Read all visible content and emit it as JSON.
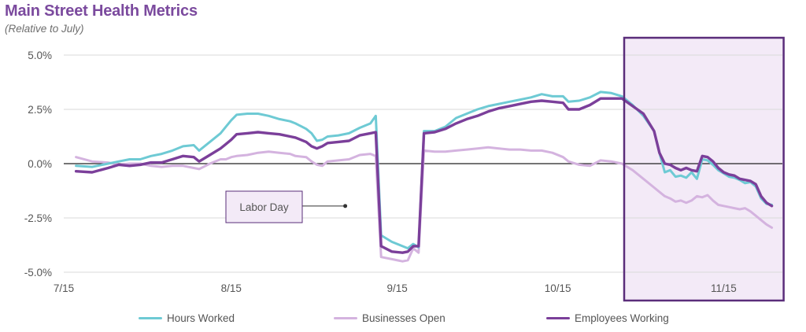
{
  "header": {
    "title": "Main Street Health Metrics",
    "subtitle": "(Relative to July)"
  },
  "colors": {
    "hours": "#6ecad4",
    "businesses": "#d4b3df",
    "employees": "#7b3f9a",
    "title": "#7b4a9e",
    "grid": "#d9d9d9",
    "zero": "#222222",
    "highlight_border": "#5a2d7a",
    "highlight_fill": "#f3eaf7"
  },
  "chart_data": {
    "type": "line",
    "title": "Main Street Health Metrics",
    "subtitle": "(Relative to July)",
    "xlabel": "",
    "ylabel": "",
    "ylim": [
      -5.0,
      5.0
    ],
    "y_ticks": [
      "5.0%",
      "2.5%",
      "0.0%",
      "-2.5%",
      "-5.0%"
    ],
    "y_tick_values": [
      5.0,
      2.5,
      0.0,
      -2.5,
      -5.0
    ],
    "x_ticks": [
      "7/15",
      "8/15",
      "9/15",
      "10/15",
      "11/15"
    ],
    "x_tick_days": [
      0,
      31,
      62,
      92,
      123
    ],
    "xlim_days": [
      0,
      132
    ],
    "grid": true,
    "legend_position": "bottom",
    "highlight_region_days": [
      105,
      132
    ],
    "annotation": {
      "label": "Labor Day",
      "day": 52
    },
    "series": [
      {
        "name": "Hours Worked",
        "color_key": "hours",
        "points": [
          [
            2,
            -0.1
          ],
          [
            5,
            -0.15
          ],
          [
            8,
            0.0
          ],
          [
            10,
            0.1
          ],
          [
            12,
            0.2
          ],
          [
            14,
            0.2
          ],
          [
            16,
            0.35
          ],
          [
            18,
            0.45
          ],
          [
            20,
            0.6
          ],
          [
            22,
            0.8
          ],
          [
            24,
            0.85
          ],
          [
            25,
            0.6
          ],
          [
            27,
            1.0
          ],
          [
            29,
            1.4
          ],
          [
            30,
            1.7
          ],
          [
            31,
            2.0
          ],
          [
            32,
            2.25
          ],
          [
            34,
            2.3
          ],
          [
            36,
            2.3
          ],
          [
            38,
            2.2
          ],
          [
            40,
            2.05
          ],
          [
            42,
            1.95
          ],
          [
            43,
            1.85
          ],
          [
            45,
            1.6
          ],
          [
            46,
            1.4
          ],
          [
            47,
            1.05
          ],
          [
            48,
            1.1
          ],
          [
            49,
            1.25
          ],
          [
            51,
            1.3
          ],
          [
            53,
            1.4
          ],
          [
            55,
            1.65
          ],
          [
            57,
            1.85
          ],
          [
            58,
            2.2
          ],
          [
            59,
            -3.3
          ],
          [
            61,
            -3.6
          ],
          [
            63,
            -3.8
          ],
          [
            64,
            -3.9
          ],
          [
            65,
            -3.7
          ],
          [
            66,
            -3.85
          ],
          [
            67,
            1.5
          ],
          [
            69,
            1.5
          ],
          [
            71,
            1.7
          ],
          [
            73,
            2.1
          ],
          [
            75,
            2.3
          ],
          [
            77,
            2.5
          ],
          [
            79,
            2.65
          ],
          [
            81,
            2.75
          ],
          [
            83,
            2.85
          ],
          [
            85,
            2.95
          ],
          [
            87,
            3.05
          ],
          [
            89,
            3.2
          ],
          [
            91,
            3.1
          ],
          [
            93,
            3.1
          ],
          [
            94,
            2.85
          ],
          [
            96,
            2.9
          ],
          [
            98,
            3.05
          ],
          [
            100,
            3.3
          ],
          [
            102,
            3.25
          ],
          [
            104,
            3.1
          ],
          [
            106,
            2.7
          ],
          [
            108,
            2.2
          ],
          [
            110,
            1.5
          ],
          [
            111,
            0.5
          ],
          [
            112,
            -0.4
          ],
          [
            113,
            -0.3
          ],
          [
            114,
            -0.6
          ],
          [
            115,
            -0.55
          ],
          [
            116,
            -0.65
          ],
          [
            117,
            -0.4
          ],
          [
            118,
            -0.7
          ],
          [
            119,
            0.2
          ],
          [
            120,
            0.15
          ],
          [
            121,
            -0.05
          ],
          [
            122,
            -0.3
          ],
          [
            123,
            -0.45
          ],
          [
            124,
            -0.6
          ],
          [
            125,
            -0.65
          ],
          [
            126,
            -0.75
          ],
          [
            127,
            -0.9
          ],
          [
            128,
            -0.85
          ],
          [
            129,
            -1.05
          ],
          [
            130,
            -1.6
          ],
          [
            131,
            -1.85
          ],
          [
            132,
            -1.9
          ]
        ]
      },
      {
        "name": "Businesses Open",
        "color_key": "businesses",
        "points": [
          [
            2,
            0.3
          ],
          [
            5,
            0.1
          ],
          [
            8,
            0.05
          ],
          [
            10,
            -0.05
          ],
          [
            12,
            0.0
          ],
          [
            14,
            0.0
          ],
          [
            16,
            -0.1
          ],
          [
            18,
            -0.15
          ],
          [
            20,
            -0.1
          ],
          [
            22,
            -0.1
          ],
          [
            24,
            -0.2
          ],
          [
            25,
            -0.25
          ],
          [
            27,
            0.0
          ],
          [
            29,
            0.2
          ],
          [
            30,
            0.2
          ],
          [
            31,
            0.3
          ],
          [
            32,
            0.35
          ],
          [
            34,
            0.4
          ],
          [
            36,
            0.5
          ],
          [
            38,
            0.55
          ],
          [
            40,
            0.5
          ],
          [
            42,
            0.45
          ],
          [
            43,
            0.35
          ],
          [
            45,
            0.3
          ],
          [
            46,
            0.1
          ],
          [
            47,
            -0.05
          ],
          [
            48,
            -0.1
          ],
          [
            49,
            0.1
          ],
          [
            51,
            0.15
          ],
          [
            53,
            0.2
          ],
          [
            55,
            0.4
          ],
          [
            57,
            0.45
          ],
          [
            58,
            0.35
          ],
          [
            59,
            -4.3
          ],
          [
            61,
            -4.4
          ],
          [
            63,
            -4.5
          ],
          [
            64,
            -4.45
          ],
          [
            65,
            -3.9
          ],
          [
            66,
            -4.1
          ],
          [
            67,
            0.6
          ],
          [
            69,
            0.55
          ],
          [
            71,
            0.55
          ],
          [
            73,
            0.6
          ],
          [
            75,
            0.65
          ],
          [
            77,
            0.7
          ],
          [
            79,
            0.75
          ],
          [
            81,
            0.7
          ],
          [
            83,
            0.65
          ],
          [
            85,
            0.65
          ],
          [
            87,
            0.6
          ],
          [
            89,
            0.6
          ],
          [
            91,
            0.5
          ],
          [
            93,
            0.3
          ],
          [
            94,
            0.1
          ],
          [
            96,
            -0.05
          ],
          [
            98,
            -0.1
          ],
          [
            100,
            0.15
          ],
          [
            102,
            0.1
          ],
          [
            104,
            0.0
          ],
          [
            106,
            -0.3
          ],
          [
            108,
            -0.7
          ],
          [
            110,
            -1.1
          ],
          [
            111,
            -1.3
          ],
          [
            112,
            -1.5
          ],
          [
            113,
            -1.6
          ],
          [
            114,
            -1.75
          ],
          [
            115,
            -1.7
          ],
          [
            116,
            -1.8
          ],
          [
            117,
            -1.7
          ],
          [
            118,
            -1.5
          ],
          [
            119,
            -1.55
          ],
          [
            120,
            -1.45
          ],
          [
            121,
            -1.7
          ],
          [
            122,
            -1.9
          ],
          [
            123,
            -1.95
          ],
          [
            124,
            -2.0
          ],
          [
            125,
            -2.05
          ],
          [
            126,
            -2.1
          ],
          [
            127,
            -2.05
          ],
          [
            128,
            -2.2
          ],
          [
            129,
            -2.4
          ],
          [
            130,
            -2.6
          ],
          [
            131,
            -2.8
          ],
          [
            132,
            -2.95
          ]
        ]
      },
      {
        "name": "Employees Working",
        "color_key": "employees",
        "points": [
          [
            2,
            -0.35
          ],
          [
            5,
            -0.4
          ],
          [
            8,
            -0.2
          ],
          [
            10,
            -0.05
          ],
          [
            12,
            -0.1
          ],
          [
            14,
            -0.05
          ],
          [
            16,
            0.05
          ],
          [
            18,
            0.05
          ],
          [
            20,
            0.2
          ],
          [
            22,
            0.35
          ],
          [
            24,
            0.3
          ],
          [
            25,
            0.1
          ],
          [
            27,
            0.4
          ],
          [
            29,
            0.7
          ],
          [
            30,
            0.9
          ],
          [
            31,
            1.1
          ],
          [
            32,
            1.35
          ],
          [
            34,
            1.4
          ],
          [
            36,
            1.45
          ],
          [
            38,
            1.4
          ],
          [
            40,
            1.35
          ],
          [
            42,
            1.25
          ],
          [
            43,
            1.2
          ],
          [
            45,
            1.0
          ],
          [
            46,
            0.8
          ],
          [
            47,
            0.7
          ],
          [
            48,
            0.8
          ],
          [
            49,
            0.95
          ],
          [
            51,
            1.0
          ],
          [
            53,
            1.05
          ],
          [
            55,
            1.3
          ],
          [
            57,
            1.4
          ],
          [
            58,
            1.45
          ],
          [
            59,
            -3.8
          ],
          [
            61,
            -4.05
          ],
          [
            63,
            -4.1
          ],
          [
            64,
            -4.05
          ],
          [
            65,
            -3.8
          ],
          [
            66,
            -3.8
          ],
          [
            67,
            1.4
          ],
          [
            69,
            1.45
          ],
          [
            71,
            1.6
          ],
          [
            73,
            1.85
          ],
          [
            75,
            2.05
          ],
          [
            77,
            2.2
          ],
          [
            79,
            2.4
          ],
          [
            81,
            2.55
          ],
          [
            83,
            2.65
          ],
          [
            85,
            2.75
          ],
          [
            87,
            2.85
          ],
          [
            89,
            2.9
          ],
          [
            91,
            2.85
          ],
          [
            93,
            2.8
          ],
          [
            94,
            2.5
          ],
          [
            96,
            2.5
          ],
          [
            98,
            2.7
          ],
          [
            100,
            3.0
          ],
          [
            102,
            3.0
          ],
          [
            104,
            3.0
          ],
          [
            106,
            2.65
          ],
          [
            108,
            2.3
          ],
          [
            110,
            1.5
          ],
          [
            111,
            0.5
          ],
          [
            112,
            0.0
          ],
          [
            113,
            -0.05
          ],
          [
            114,
            -0.2
          ],
          [
            115,
            -0.3
          ],
          [
            116,
            -0.2
          ],
          [
            117,
            -0.3
          ],
          [
            118,
            -0.35
          ],
          [
            119,
            0.35
          ],
          [
            120,
            0.3
          ],
          [
            121,
            0.1
          ],
          [
            122,
            -0.2
          ],
          [
            123,
            -0.4
          ],
          [
            124,
            -0.5
          ],
          [
            125,
            -0.55
          ],
          [
            126,
            -0.7
          ],
          [
            127,
            -0.75
          ],
          [
            128,
            -0.8
          ],
          [
            129,
            -0.95
          ],
          [
            130,
            -1.5
          ],
          [
            131,
            -1.8
          ],
          [
            132,
            -1.95
          ]
        ]
      }
    ]
  }
}
